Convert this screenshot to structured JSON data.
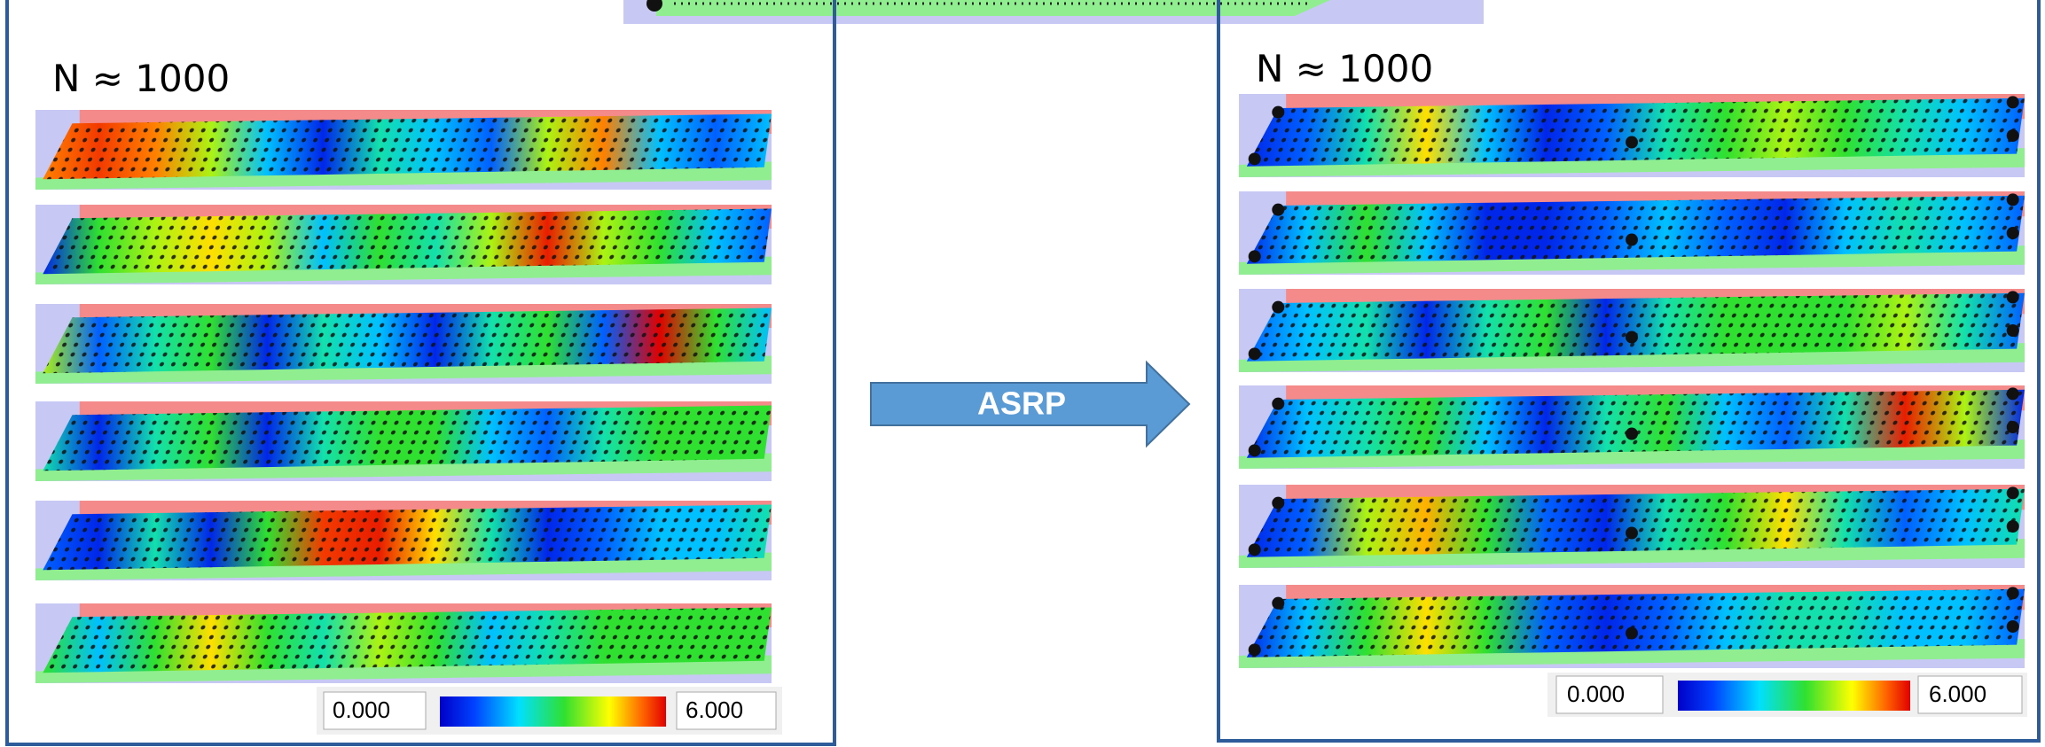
{
  "left": {
    "label": "N ≈ 1000",
    "colorbar": {
      "min": "0.000",
      "max": "6.000"
    }
  },
  "arrow": {
    "label": "ASRP"
  },
  "right": {
    "label": "N ≈ 1000",
    "colorbar": {
      "min": "0.000",
      "max": "6.000"
    }
  }
}
